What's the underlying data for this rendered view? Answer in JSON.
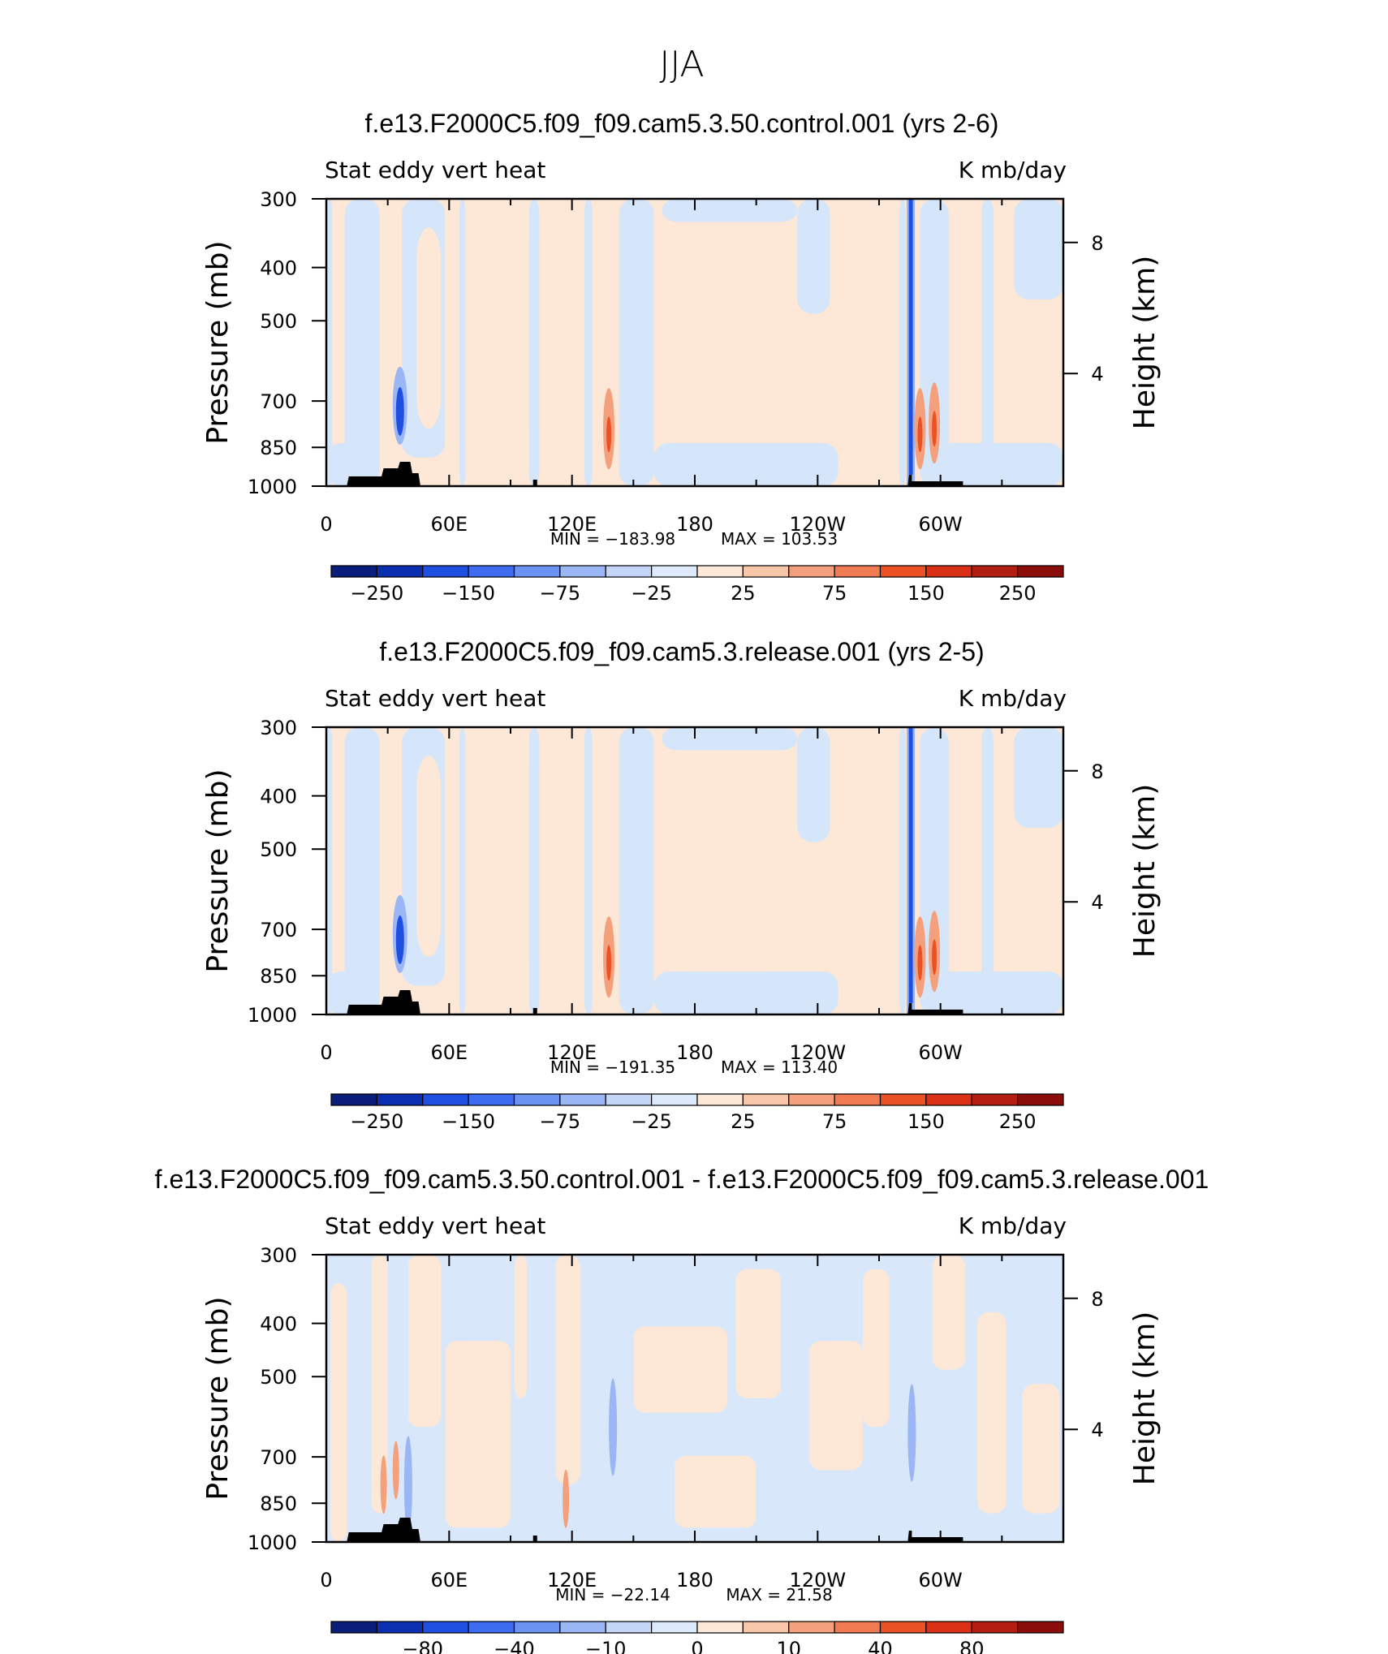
{
  "figure": {
    "season": "JJA"
  },
  "chart_data": [
    {
      "type": "heatmap",
      "title": "f.e13.F2000C5.f09_f09.cam5.3.50.control.001 (yrs 2-6)",
      "left_string": "Stat eddy vert heat",
      "right_string": "K mb/day",
      "ylabel": "Pressure (mb)",
      "ylabel_right": "Height (km)",
      "x_ticks": [
        "0",
        "60E",
        "120E",
        "180",
        "120W",
        "60W"
      ],
      "y_ticks": [
        "300",
        "400",
        "500",
        "700",
        "850",
        "1000"
      ],
      "y_ticks_right": [
        "8",
        "4"
      ],
      "y_scale": "log",
      "xlim": [
        0,
        360
      ],
      "ylim": [
        1000,
        300
      ],
      "min_label": "MIN = −183.98",
      "max_label": "MAX = 103.53",
      "min": -183.98,
      "max": 103.53,
      "colorbar_labels": [
        "−250",
        "−150",
        "−75",
        "−25",
        "25",
        "75",
        "150",
        "250"
      ],
      "colorbar_colors": [
        "#0b1d7a",
        "#0a2fb0",
        "#1e4fe0",
        "#3d6cf0",
        "#6b93f2",
        "#9bb6f4",
        "#c4d6f8",
        "#dceafb",
        "#fde7d6",
        "#f8c6a8",
        "#f4a07c",
        "#f07a52",
        "#ea5125",
        "#d93016",
        "#b41e10",
        "#8b0d0a"
      ]
    },
    {
      "type": "heatmap",
      "title": "f.e13.F2000C5.f09_f09.cam5.3.release.001 (yrs 2-5)",
      "left_string": "Stat eddy vert heat",
      "right_string": "K mb/day",
      "ylabel": "Pressure (mb)",
      "ylabel_right": "Height (km)",
      "x_ticks": [
        "0",
        "60E",
        "120E",
        "180",
        "120W",
        "60W"
      ],
      "y_ticks": [
        "300",
        "400",
        "500",
        "700",
        "850",
        "1000"
      ],
      "y_ticks_right": [
        "8",
        "4"
      ],
      "y_scale": "log",
      "xlim": [
        0,
        360
      ],
      "ylim": [
        1000,
        300
      ],
      "min_label": "MIN = −191.35",
      "max_label": "MAX = 113.40",
      "min": -191.35,
      "max": 113.4,
      "colorbar_labels": [
        "−250",
        "−150",
        "−75",
        "−25",
        "25",
        "75",
        "150",
        "250"
      ],
      "colorbar_colors": [
        "#0b1d7a",
        "#0a2fb0",
        "#1e4fe0",
        "#3d6cf0",
        "#6b93f2",
        "#9bb6f4",
        "#c4d6f8",
        "#dceafb",
        "#fde7d6",
        "#f8c6a8",
        "#f4a07c",
        "#f07a52",
        "#ea5125",
        "#d93016",
        "#b41e10",
        "#8b0d0a"
      ]
    },
    {
      "type": "heatmap",
      "title": "f.e13.F2000C5.f09_f09.cam5.3.50.control.001 - f.e13.F2000C5.f09_f09.cam5.3.release.001",
      "left_string": "Stat eddy vert heat",
      "right_string": "K mb/day",
      "ylabel": "Pressure (mb)",
      "ylabel_right": "Height (km)",
      "x_ticks": [
        "0",
        "60E",
        "120E",
        "180",
        "120W",
        "60W"
      ],
      "y_ticks": [
        "300",
        "400",
        "500",
        "700",
        "850",
        "1000"
      ],
      "y_ticks_right": [
        "8",
        "4"
      ],
      "y_scale": "log",
      "xlim": [
        0,
        360
      ],
      "ylim": [
        1000,
        300
      ],
      "min_label": "MIN = −22.14",
      "max_label": "MAX =   21.58",
      "min": -22.14,
      "max": 21.58,
      "colorbar_labels": [
        "−80",
        "−40",
        "−10",
        "0",
        "10",
        "40",
        "80"
      ],
      "colorbar_colors": [
        "#0b1d7a",
        "#0a2fb0",
        "#1e4fe0",
        "#3d6cf0",
        "#6b93f2",
        "#9bb6f4",
        "#c4d6f8",
        "#dceafb",
        "#fde7d6",
        "#f8c6a8",
        "#f4a07c",
        "#f07a52",
        "#ea5125",
        "#d93016",
        "#b41e10",
        "#8b0d0a"
      ]
    }
  ],
  "colors": {
    "pos_weak": "#fde7d6",
    "neg_weak": "#d6e6fa",
    "neg_mid": "#9bb6f4",
    "neg_strong": "#1e4fe0",
    "pos_mid": "#f4a07c",
    "pos_strong": "#ea5125",
    "topography": "#000000"
  }
}
